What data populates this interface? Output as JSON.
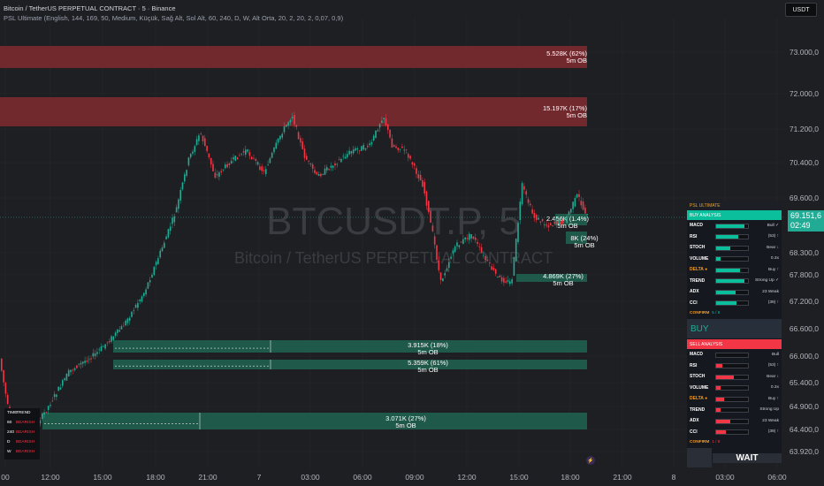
{
  "header": {
    "title": "Bitcoin / TetherUS PERPETUAL CONTRACT · 5 · Binance",
    "indicator": "PSL Ultimate (English, 144, 169, 50, Medium, Küçük, Sağ Alt, Sol Alt, 60, 240, D, W, Alt Orta, 20, 2, 20, 2, 0,07, 0,9)"
  },
  "currency_badge": "USDT",
  "watermark": {
    "symbol": "BTCUSDT.P, 5",
    "name": "Bitcoin / TetherUS PERPETUAL CONTRACT"
  },
  "price_scale": [
    "73.000,0",
    "72.000,0",
    "71.200,0",
    "70.400,0",
    "69.600,0",
    "68.300,0",
    "67.800,0",
    "67.200,0",
    "66.600,0",
    "66.000,0",
    "65.400,0",
    "64.900,0",
    "64.400,0",
    "63.920,0"
  ],
  "current_price": {
    "price": "69.151,6",
    "countdown": "02:49"
  },
  "time_axis": [
    "00",
    "12:00",
    "15:00",
    "18:00",
    "21:00",
    "7",
    "03:00",
    "06:00",
    "09:00",
    "12:00",
    "15:00",
    "18:00",
    "21:00",
    "8",
    "03:00",
    "06:00"
  ],
  "order_blocks": [
    {
      "label": "5.528K (62%)",
      "sub": "5m OB",
      "kind": "bearish"
    },
    {
      "label": "15.197K (17%)",
      "sub": "5m OB",
      "kind": "bearish"
    },
    {
      "label": "2.456K (1.4%)",
      "sub": "5m OB",
      "kind": "bullish"
    },
    {
      "label": "8K (24%)",
      "sub": "5m OB",
      "kind": "bullish"
    },
    {
      "label": "4.869K (27%)",
      "sub": "5m OB",
      "kind": "bullish"
    },
    {
      "label": "3.915K (18%)",
      "sub": "5m OB",
      "kind": "bullish"
    },
    {
      "label": "5.359K (61%)",
      "sub": "5m OB",
      "kind": "bullish"
    },
    {
      "label": "3.071K (27%)",
      "sub": "5m OB",
      "kind": "bullish"
    }
  ],
  "panel": {
    "title": "PSL ULTIMATE",
    "buy": {
      "header": "BUY ANALYSIS",
      "rows": [
        {
          "label": "MACD",
          "value": "Bull ✓",
          "fill": 0.9
        },
        {
          "label": "RSI",
          "value": "(53) ↑",
          "fill": 0.7
        },
        {
          "label": "STOCH",
          "value": "Bear ↓",
          "fill": 0.45
        },
        {
          "label": "VOLUME",
          "value": "0.3x",
          "fill": 0.15
        },
        {
          "label": "DELTA ●",
          "value": "Buy ↑",
          "fill": 0.75,
          "orange": true
        },
        {
          "label": "TREND",
          "value": "Strong Up ✓",
          "fill": 0.9
        },
        {
          "label": "ADX",
          "value": "23 Weak",
          "fill": 0.6
        },
        {
          "label": "CCI",
          "value": "(39) ↑",
          "fill": 0.65
        }
      ],
      "confirm_label": "CONFIRM",
      "confirm_value": "5 / 8",
      "action": "BUY"
    },
    "sell": {
      "header": "SELL ANALYSIS",
      "rows": [
        {
          "label": "MACD",
          "value": "Bull",
          "fill": 0.0
        },
        {
          "label": "RSI",
          "value": "(53) ↑",
          "fill": 0.2
        },
        {
          "label": "STOCH",
          "value": "Bear ↓",
          "fill": 0.55
        },
        {
          "label": "VOLUME",
          "value": "0.3x",
          "fill": 0.15
        },
        {
          "label": "DELTA ●",
          "value": "Buy ↑",
          "fill": 0.25,
          "orange": true
        },
        {
          "label": "TREND",
          "value": "Strong Up",
          "fill": 0.15
        },
        {
          "label": "ADX",
          "value": "23 Weak",
          "fill": 0.45
        },
        {
          "label": "CCI",
          "value": "(39) ↑",
          "fill": 0.3
        }
      ],
      "confirm_label": "CONFIRM",
      "confirm_value": "1 / 8",
      "action": "WAIT"
    }
  },
  "tf_table": {
    "headers": [
      "TIME",
      "TREND"
    ],
    "rows": [
      [
        "60",
        "BEARISH"
      ],
      [
        "240",
        "BEARISH"
      ],
      [
        "D",
        "BEARISH"
      ],
      [
        "W",
        "BEARISH"
      ]
    ]
  },
  "colors": {
    "bull": "#22ab94",
    "bear": "#f23645",
    "ob_bear": "#7a2a30",
    "ob_bull": "#1f5f4e",
    "accent": "#0bbf9d"
  }
}
